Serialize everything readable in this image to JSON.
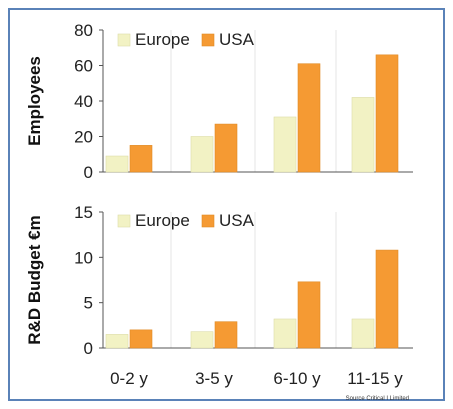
{
  "colors": {
    "europe": "#f2f2c4",
    "usa": "#f59a33",
    "frame": "#5a82b8"
  },
  "chart_data": [
    {
      "type": "bar",
      "ylabel": "Employees",
      "ylim": [
        0,
        80
      ],
      "yticks": [
        0,
        20,
        40,
        60,
        80
      ],
      "categories": [
        "0-2 y",
        "3-5 y",
        "6-10 y",
        "11-15 y"
      ],
      "series": [
        {
          "name": "Europe",
          "values": [
            9,
            20,
            31,
            42
          ]
        },
        {
          "name": "USA",
          "values": [
            15,
            27,
            61,
            66
          ]
        }
      ],
      "legend": "top-left",
      "grid": true
    },
    {
      "type": "bar",
      "ylabel": "R&D Budget €m",
      "ylim": [
        0,
        15
      ],
      "yticks": [
        0,
        5,
        10,
        15
      ],
      "categories": [
        "0-2 y",
        "3-5 y",
        "6-10 y",
        "11-15 y"
      ],
      "series": [
        {
          "name": "Europe",
          "values": [
            1.5,
            1.8,
            3.2,
            3.2
          ]
        },
        {
          "name": "USA",
          "values": [
            2.0,
            2.9,
            7.3,
            10.8
          ]
        }
      ],
      "legend": "top-left",
      "grid": true
    }
  ],
  "source": "Source Critical I Limited"
}
